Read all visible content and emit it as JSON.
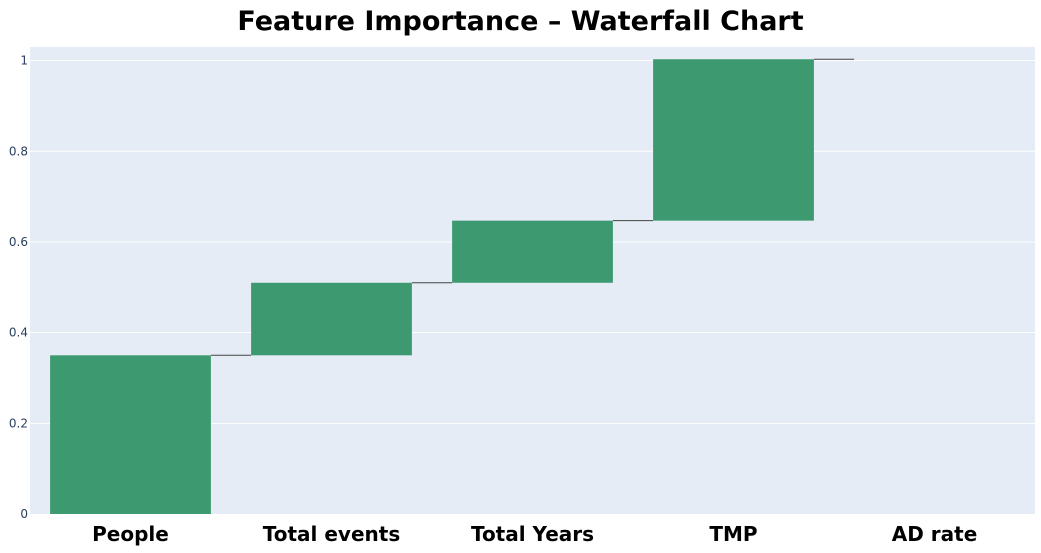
{
  "chart_data": {
    "type": "waterfall",
    "title": "Feature Importance – Waterfall Chart",
    "xlabel": "",
    "ylabel": "",
    "categories": [
      "People",
      "Total events",
      "Total Years",
      "TMP",
      "AD rate"
    ],
    "values": [
      0.35,
      0.16,
      0.137,
      0.356,
      0.0
    ],
    "ylim": [
      0,
      1.03
    ],
    "yticks": [
      "0",
      "0.2",
      "0.4",
      "0.6",
      "0.8",
      "1"
    ],
    "ytick_values": [
      0,
      0.2,
      0.4,
      0.6,
      0.8,
      1
    ],
    "grid": true,
    "legend": "none",
    "colors": {
      "bar": "#3d9970",
      "connector": "#444444",
      "plot_background": "#e5ecf6",
      "gridline": "#ffffff",
      "tick_text": "#2a3f5f"
    }
  }
}
